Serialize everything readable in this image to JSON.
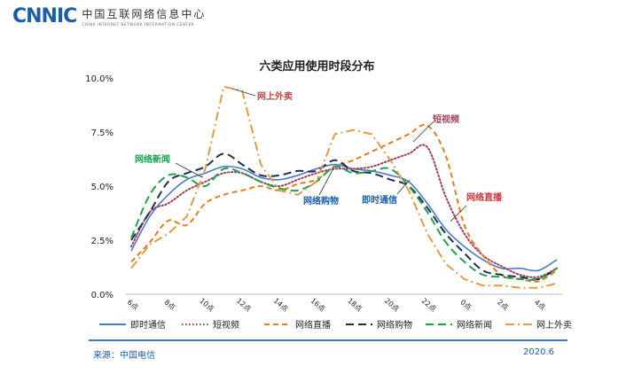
{
  "header": {
    "logo_text": "CNNIC",
    "org_cn": "中国互联网络信息中心",
    "org_en": "CHINA INTERNET NETWORK INFORMATION CENTER"
  },
  "footer": {
    "source": "来源：中国电信",
    "date": "2020.6"
  },
  "chart_data": {
    "type": "line",
    "title": "六类应用使用时段分布",
    "categories": [
      "6点",
      "8点",
      "10点",
      "12点",
      "14点",
      "16点",
      "18点",
      "20点",
      "22点",
      "0点",
      "2点",
      "4点"
    ],
    "x": [
      6,
      7,
      8,
      9,
      10,
      11,
      12,
      13,
      14,
      15,
      16,
      17,
      18,
      19,
      20,
      21,
      22,
      23,
      24,
      25,
      26,
      27,
      28,
      29
    ],
    "y_ticks": [
      "0.0%",
      "2.5%",
      "5.0%",
      "7.5%",
      "10.0%"
    ],
    "ylim": [
      0,
      10
    ],
    "grid": false,
    "legend_position": "bottom",
    "series": [
      {
        "name": "即时通信",
        "color": "#4a7cc2",
        "dash": "solid",
        "values": [
          2.0,
          3.6,
          4.6,
          5.3,
          5.6,
          5.9,
          5.8,
          5.4,
          5.3,
          5.5,
          5.8,
          6.0,
          5.8,
          5.7,
          5.5,
          5.2,
          4.2,
          3.0,
          2.2,
          1.6,
          1.2,
          1.2,
          1.1,
          1.6
        ]
      },
      {
        "name": "短视频",
        "color": "#a0405a",
        "dash": "dot",
        "values": [
          2.2,
          3.8,
          4.2,
          4.8,
          5.2,
          5.6,
          5.6,
          5.2,
          5.0,
          5.3,
          5.6,
          5.8,
          5.8,
          5.9,
          6.2,
          6.5,
          6.8,
          4.5,
          2.8,
          1.8,
          1.3,
          0.9,
          0.8,
          1.2
        ]
      },
      {
        "name": "网络直播",
        "color": "#e87d1e",
        "dash": "dash",
        "values": [
          1.5,
          2.4,
          3.4,
          3.2,
          4.2,
          4.6,
          4.8,
          5.0,
          4.8,
          5.1,
          5.3,
          5.9,
          6.2,
          6.6,
          7.0,
          7.4,
          7.8,
          6.4,
          3.2,
          1.8,
          0.9,
          0.7,
          0.6,
          1.1
        ]
      },
      {
        "name": "网络购物",
        "color": "#1f2d4f",
        "dash": "longdash",
        "values": [
          2.5,
          3.8,
          5.2,
          5.6,
          5.9,
          6.5,
          6.0,
          5.5,
          5.5,
          5.7,
          5.7,
          6.2,
          5.7,
          5.6,
          5.3,
          5.0,
          4.0,
          2.8,
          1.9,
          1.1,
          0.9,
          0.8,
          0.7,
          1.2
        ]
      },
      {
        "name": "网络新闻",
        "color": "#1aa34a",
        "dash": "longdash",
        "values": [
          2.6,
          4.6,
          5.5,
          5.4,
          5.0,
          5.8,
          5.6,
          5.2,
          4.9,
          4.8,
          5.2,
          5.9,
          5.6,
          5.7,
          5.8,
          5.0,
          3.8,
          2.4,
          1.5,
          0.9,
          0.8,
          0.7,
          0.7,
          1.2
        ]
      },
      {
        "name": "网上外卖",
        "color": "#e39a4a",
        "dash": "dashdot",
        "values": [
          1.2,
          2.3,
          2.8,
          3.6,
          5.8,
          9.6,
          9.4,
          6.0,
          4.8,
          4.6,
          5.2,
          7.4,
          7.6,
          7.4,
          6.2,
          4.8,
          2.8,
          1.4,
          0.7,
          0.4,
          0.4,
          0.3,
          0.3,
          0.5
        ]
      }
    ],
    "annotations": [
      {
        "text": "网上外卖",
        "color": "#b84a4a"
      },
      {
        "text": "短视频",
        "color": "#a0405a"
      },
      {
        "text": "网络新闻",
        "color": "#1aa34a"
      },
      {
        "text": "网络购物",
        "color": "#1a5ea8"
      },
      {
        "text": "即时通信",
        "color": "#1a5ea8"
      },
      {
        "text": "网络直播",
        "color": "#c83a3a"
      }
    ]
  }
}
